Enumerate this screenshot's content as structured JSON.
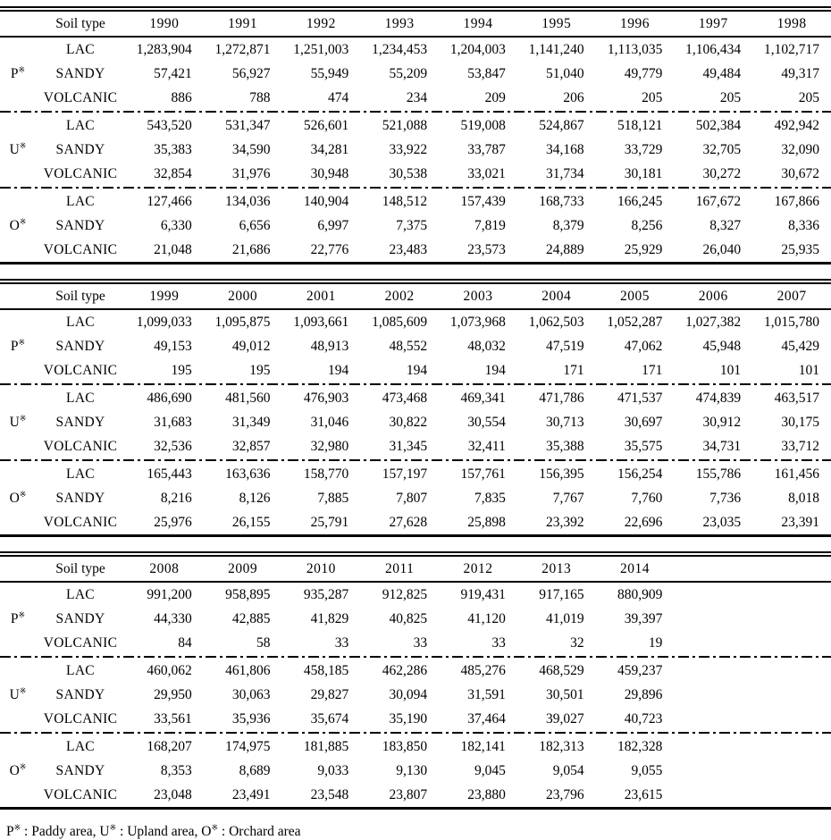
{
  "page": {
    "background": "#ffffff",
    "text_color": "#000000"
  },
  "labels": {
    "soil_type_header": "Soil type"
  },
  "layout": {
    "year_columns": 9
  },
  "tables": [
    {
      "name": "soil-area-table-1990-1998",
      "years": [
        "1990",
        "1991",
        "1992",
        "1993",
        "1994",
        "1995",
        "1996",
        "1997",
        "1998"
      ],
      "groups": [
        {
          "label": "P",
          "marker": "※",
          "rows": [
            {
              "soil": "LAC",
              "values": [
                "1,283,904",
                "1,272,871",
                "1,251,003",
                "1,234,453",
                "1,204,003",
                "1,141,240",
                "1,113,035",
                "1,106,434",
                "1,102,717"
              ]
            },
            {
              "soil": "SANDY",
              "values": [
                "57,421",
                "56,927",
                "55,949",
                "55,209",
                "53,847",
                "51,040",
                "49,779",
                "49,484",
                "49,317"
              ]
            },
            {
              "soil": "VOLCANIC",
              "values": [
                "886",
                "788",
                "474",
                "234",
                "209",
                "206",
                "205",
                "205",
                "205"
              ]
            }
          ]
        },
        {
          "label": "U",
          "marker": "※",
          "rows": [
            {
              "soil": "LAC",
              "values": [
                "543,520",
                "531,347",
                "526,601",
                "521,088",
                "519,008",
                "524,867",
                "518,121",
                "502,384",
                "492,942"
              ]
            },
            {
              "soil": "SANDY",
              "values": [
                "35,383",
                "34,590",
                "34,281",
                "33,922",
                "33,787",
                "34,168",
                "33,729",
                "32,705",
                "32,090"
              ]
            },
            {
              "soil": "VOLCANIC",
              "values": [
                "32,854",
                "31,976",
                "30,948",
                "30,538",
                "33,021",
                "31,734",
                "30,181",
                "30,272",
                "30,672"
              ]
            }
          ]
        },
        {
          "label": "O",
          "marker": "※",
          "rows": [
            {
              "soil": "LAC",
              "values": [
                "127,466",
                "134,036",
                "140,904",
                "148,512",
                "157,439",
                "168,733",
                "166,245",
                "167,672",
                "167,866"
              ]
            },
            {
              "soil": "SANDY",
              "values": [
                "6,330",
                "6,656",
                "6,997",
                "7,375",
                "7,819",
                "8,379",
                "8,256",
                "8,327",
                "8,336"
              ]
            },
            {
              "soil": "VOLCANIC",
              "values": [
                "21,048",
                "21,686",
                "22,776",
                "23,483",
                "23,573",
                "24,889",
                "25,929",
                "26,040",
                "25,935"
              ]
            }
          ]
        }
      ]
    },
    {
      "name": "soil-area-table-1999-2007",
      "years": [
        "1999",
        "2000",
        "2001",
        "2002",
        "2003",
        "2004",
        "2005",
        "2006",
        "2007"
      ],
      "groups": [
        {
          "label": "P",
          "marker": "※",
          "rows": [
            {
              "soil": "LAC",
              "values": [
                "1,099,033",
                "1,095,875",
                "1,093,661",
                "1,085,609",
                "1,073,968",
                "1,062,503",
                "1,052,287",
                "1,027,382",
                "1,015,780"
              ]
            },
            {
              "soil": "SANDY",
              "values": [
                "49,153",
                "49,012",
                "48,913",
                "48,552",
                "48,032",
                "47,519",
                "47,062",
                "45,948",
                "45,429"
              ]
            },
            {
              "soil": "VOLCANIC",
              "values": [
                "195",
                "195",
                "194",
                "194",
                "194",
                "171",
                "171",
                "101",
                "101"
              ]
            }
          ]
        },
        {
          "label": "U",
          "marker": "※",
          "rows": [
            {
              "soil": "LAC",
              "values": [
                "486,690",
                "481,560",
                "476,903",
                "473,468",
                "469,341",
                "471,786",
                "471,537",
                "474,839",
                "463,517"
              ]
            },
            {
              "soil": "SANDY",
              "values": [
                "31,683",
                "31,349",
                "31,046",
                "30,822",
                "30,554",
                "30,713",
                "30,697",
                "30,912",
                "30,175"
              ]
            },
            {
              "soil": "VOLCANIC",
              "values": [
                "32,536",
                "32,857",
                "32,980",
                "31,345",
                "32,411",
                "35,388",
                "35,575",
                "34,731",
                "33,712"
              ]
            }
          ]
        },
        {
          "label": "O",
          "marker": "※",
          "rows": [
            {
              "soil": "LAC",
              "values": [
                "165,443",
                "163,636",
                "158,770",
                "157,197",
                "157,761",
                "156,395",
                "156,254",
                "155,786",
                "161,456"
              ]
            },
            {
              "soil": "SANDY",
              "values": [
                "8,216",
                "8,126",
                "7,885",
                "7,807",
                "7,835",
                "7,767",
                "7,760",
                "7,736",
                "8,018"
              ]
            },
            {
              "soil": "VOLCANIC",
              "values": [
                "25,976",
                "26,155",
                "25,791",
                "27,628",
                "25,898",
                "23,392",
                "22,696",
                "23,035",
                "23,391"
              ]
            }
          ]
        }
      ]
    },
    {
      "name": "soil-area-table-2008-2014",
      "years": [
        "2008",
        "2009",
        "2010",
        "2011",
        "2012",
        "2013",
        "2014"
      ],
      "groups": [
        {
          "label": "P",
          "marker": "※",
          "rows": [
            {
              "soil": "LAC",
              "values": [
                "991,200",
                "958,895",
                "935,287",
                "912,825",
                "919,431",
                "917,165",
                "880,909"
              ]
            },
            {
              "soil": "SANDY",
              "values": [
                "44,330",
                "42,885",
                "41,829",
                "40,825",
                "41,120",
                "41,019",
                "39,397"
              ]
            },
            {
              "soil": "VOLCANIC",
              "values": [
                "84",
                "58",
                "33",
                "33",
                "33",
                "32",
                "19"
              ]
            }
          ]
        },
        {
          "label": "U",
          "marker": "※",
          "rows": [
            {
              "soil": "LAC",
              "values": [
                "460,062",
                "461,806",
                "458,185",
                "462,286",
                "485,276",
                "468,529",
                "459,237"
              ]
            },
            {
              "soil": "SANDY",
              "values": [
                "29,950",
                "30,063",
                "29,827",
                "30,094",
                "31,591",
                "30,501",
                "29,896"
              ]
            },
            {
              "soil": "VOLCANIC",
              "values": [
                "33,561",
                "35,936",
                "35,674",
                "35,190",
                "37,464",
                "39,027",
                "40,723"
              ]
            }
          ]
        },
        {
          "label": "O",
          "marker": "※",
          "rows": [
            {
              "soil": "LAC",
              "values": [
                "168,207",
                "174,975",
                "181,885",
                "183,850",
                "182,141",
                "182,313",
                "182,328"
              ]
            },
            {
              "soil": "SANDY",
              "values": [
                "8,353",
                "8,689",
                "9,033",
                "9,130",
                "9,045",
                "9,054",
                "9,055"
              ]
            },
            {
              "soil": "VOLCANIC",
              "values": [
                "23,048",
                "23,491",
                "23,548",
                "23,807",
                "23,880",
                "23,796",
                "23,615"
              ]
            }
          ]
        }
      ]
    }
  ],
  "footnote": {
    "p_label": "P",
    "p_marker": "※",
    "p_text": " : Paddy area, ",
    "u_label": "U",
    "u_marker": "※",
    "u_text": " : Upland area, ",
    "o_label": "O",
    "o_marker": "※",
    "o_text": " : Orchard area"
  }
}
